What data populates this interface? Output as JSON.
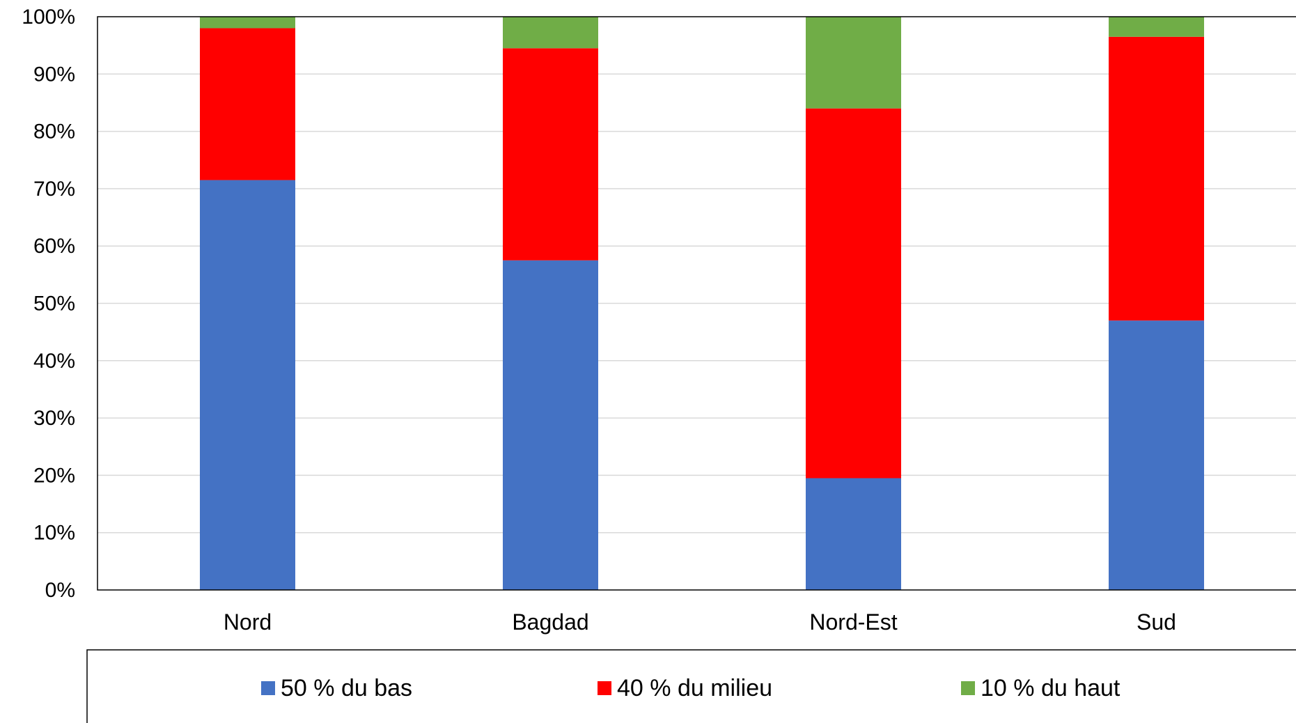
{
  "chart_data": {
    "type": "bar",
    "stacked": true,
    "percent_stacked": true,
    "categories": [
      "Nord",
      "Bagdad",
      "Nord-Est",
      "Sud"
    ],
    "series": [
      {
        "name": "50 % du bas",
        "color": "#4472C4",
        "values": [
          71.5,
          57.5,
          19.5,
          47.0
        ]
      },
      {
        "name": "40 % du milieu",
        "color": "#FF0000",
        "values": [
          26.5,
          37.0,
          64.5,
          49.5
        ]
      },
      {
        "name": "10 % du haut",
        "color": "#70AD47",
        "values": [
          2.0,
          5.5,
          16.0,
          3.5
        ]
      }
    ],
    "ylim": [
      0,
      100
    ],
    "yticks": [
      "0%",
      "10%",
      "20%",
      "30%",
      "40%",
      "50%",
      "60%",
      "70%",
      "80%",
      "90%",
      "100%"
    ],
    "grid": true,
    "legend_position": "bottom"
  }
}
